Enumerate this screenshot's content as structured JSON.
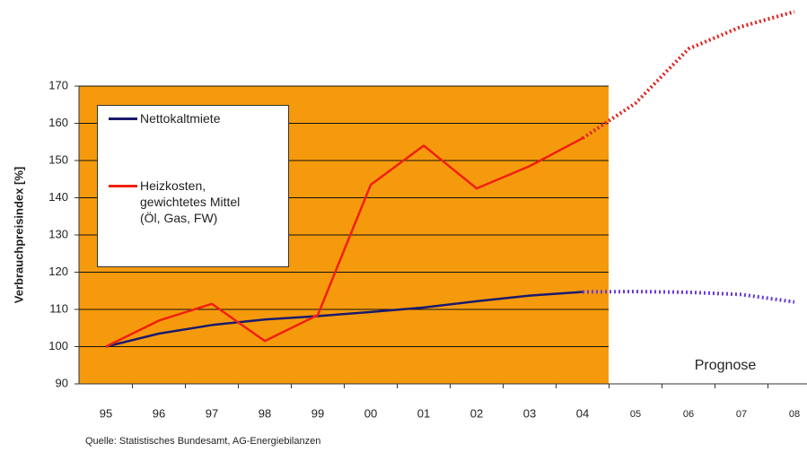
{
  "chart_data": {
    "type": "line",
    "y_label": "Verbrauchpreisindex [%]",
    "categories": [
      "95",
      "96",
      "97",
      "98",
      "99",
      "00",
      "01",
      "02",
      "03",
      "04",
      "05",
      "06",
      "07",
      "08"
    ],
    "series": [
      {
        "name": "Nettokaltmiete",
        "color": "#1a1a6e",
        "forecast_color": "#6a3bd9",
        "values": [
          100,
          103.5,
          105.8,
          107.3,
          108.2,
          109.3,
          110.5,
          112.2,
          113.7,
          114.7,
          null,
          null,
          null,
          null
        ],
        "forecast_values": [
          null,
          null,
          null,
          null,
          null,
          null,
          null,
          null,
          null,
          114.7,
          114.8,
          114.6,
          114,
          112
        ]
      },
      {
        "name": "Heizkosten, gewichtetes Mittel (Öl, Gas, FW)",
        "color": "#f02010",
        "forecast_color": "#e0201c",
        "values": [
          100,
          107,
          111.5,
          101.5,
          108.5,
          143.5,
          154,
          142.5,
          148.5,
          156,
          null,
          null,
          null,
          null
        ],
        "forecast_values": [
          null,
          null,
          null,
          null,
          null,
          null,
          null,
          null,
          null,
          156,
          165.4,
          180,
          186,
          190
        ]
      }
    ],
    "ylim": [
      90,
      170
    ],
    "yticks": [
      90,
      100,
      110,
      120,
      130,
      140,
      150,
      160,
      170
    ],
    "grid": true,
    "plot_color": "#f59a0c",
    "annotation": "Prognose",
    "source": "Quelle: Statistisches Bundesamt, AG-Energiebilanzen"
  }
}
